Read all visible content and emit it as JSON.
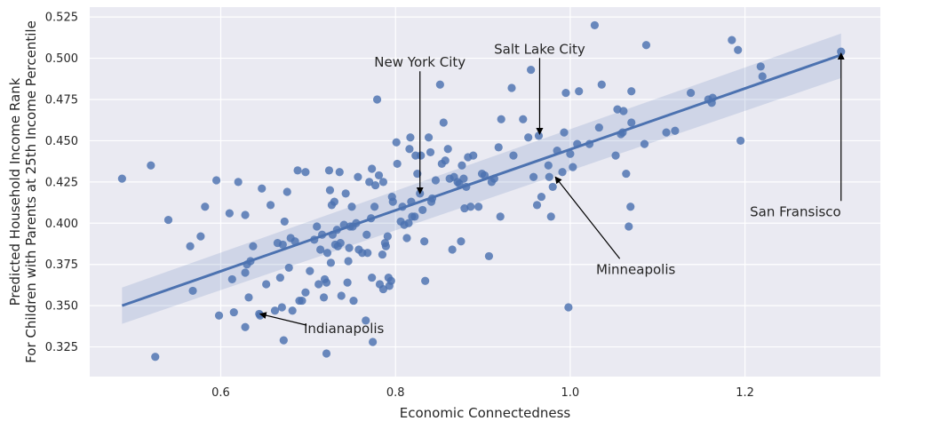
{
  "chart_data": {
    "type": "scatter",
    "xlabel": "Economic Connectedness",
    "ylabel_lines": [
      "Predicted Household Income Rank",
      "For Children with Parents at 25th Income Percentile"
    ],
    "xlim": [
      0.45,
      1.355
    ],
    "ylim": [
      0.307,
      0.531
    ],
    "xticks": [
      0.6,
      0.8,
      1.0,
      1.2
    ],
    "xtick_labels": [
      "0.6",
      "0.8",
      "1.0",
      "1.2"
    ],
    "yticks": [
      0.325,
      0.35,
      0.375,
      0.4,
      0.425,
      0.45,
      0.475,
      0.5,
      0.525
    ],
    "ytick_labels": [
      "0.325",
      "0.350",
      "0.375",
      "0.400",
      "0.425",
      "0.450",
      "0.475",
      "0.500",
      "0.525"
    ],
    "grid": true,
    "regression": {
      "x": [
        0.487,
        1.31
      ],
      "y": [
        0.35,
        0.502
      ],
      "ci_low": [
        0.339,
        0.488
      ],
      "ci_high": [
        0.361,
        0.515
      ]
    },
    "annotations": [
      {
        "text": "New York City",
        "x": 0.828,
        "y": 0.418,
        "text_x": 0.828,
        "text_y": 0.4975,
        "anchor": "middle"
      },
      {
        "text": "Salt Lake City",
        "x": 0.965,
        "y": 0.454,
        "text_x": 0.965,
        "text_y": 0.5055,
        "anchor": "middle"
      },
      {
        "text": "San Fransisco",
        "x": 1.31,
        "y": 0.503,
        "text_x": 1.31,
        "text_y": 0.407,
        "anchor": "end"
      },
      {
        "text": "Minneapolis",
        "x": 0.983,
        "y": 0.428,
        "text_x": 1.075,
        "text_y": 0.372,
        "anchor": "middle"
      },
      {
        "text": "Indianapolis",
        "x": 0.645,
        "y": 0.345,
        "text_x": 0.741,
        "text_y": 0.336,
        "anchor": "middle"
      }
    ],
    "points": [
      [
        0.487,
        0.427
      ],
      [
        0.52,
        0.435
      ],
      [
        0.525,
        0.319
      ],
      [
        0.54,
        0.402
      ],
      [
        0.565,
        0.386
      ],
      [
        0.568,
        0.359
      ],
      [
        0.577,
        0.392
      ],
      [
        0.582,
        0.41
      ],
      [
        0.595,
        0.426
      ],
      [
        0.598,
        0.344
      ],
      [
        0.61,
        0.406
      ],
      [
        0.613,
        0.366
      ],
      [
        0.615,
        0.346
      ],
      [
        0.62,
        0.425
      ],
      [
        0.628,
        0.37
      ],
      [
        0.628,
        0.405
      ],
      [
        0.628,
        0.337
      ],
      [
        0.63,
        0.375
      ],
      [
        0.632,
        0.355
      ],
      [
        0.634,
        0.377
      ],
      [
        0.637,
        0.386
      ],
      [
        0.644,
        0.345
      ],
      [
        0.645,
        0.344
      ],
      [
        0.647,
        0.421
      ],
      [
        0.652,
        0.363
      ],
      [
        0.657,
        0.411
      ],
      [
        0.662,
        0.347
      ],
      [
        0.665,
        0.388
      ],
      [
        0.668,
        0.367
      ],
      [
        0.67,
        0.349
      ],
      [
        0.671,
        0.387
      ],
      [
        0.672,
        0.329
      ],
      [
        0.673,
        0.401
      ],
      [
        0.676,
        0.419
      ],
      [
        0.678,
        0.373
      ],
      [
        0.68,
        0.391
      ],
      [
        0.682,
        0.347
      ],
      [
        0.685,
        0.389
      ],
      [
        0.688,
        0.432
      ],
      [
        0.69,
        0.353
      ],
      [
        0.693,
        0.353
      ],
      [
        0.697,
        0.431
      ],
      [
        0.697,
        0.358
      ],
      [
        0.702,
        0.371
      ],
      [
        0.707,
        0.39
      ],
      [
        0.71,
        0.398
      ],
      [
        0.712,
        0.363
      ],
      [
        0.714,
        0.384
      ],
      [
        0.716,
        0.393
      ],
      [
        0.718,
        0.355
      ],
      [
        0.719,
        0.366
      ],
      [
        0.721,
        0.364
      ],
      [
        0.721,
        0.321
      ],
      [
        0.722,
        0.382
      ],
      [
        0.724,
        0.432
      ],
      [
        0.725,
        0.42
      ],
      [
        0.726,
        0.376
      ],
      [
        0.727,
        0.411
      ],
      [
        0.728,
        0.393
      ],
      [
        0.73,
        0.413
      ],
      [
        0.731,
        0.387
      ],
      [
        0.733,
        0.396
      ],
      [
        0.734,
        0.386
      ],
      [
        0.736,
        0.431
      ],
      [
        0.737,
        0.388
      ],
      [
        0.738,
        0.356
      ],
      [
        0.741,
        0.399
      ],
      [
        0.743,
        0.418
      ],
      [
        0.745,
        0.364
      ],
      [
        0.746,
        0.377
      ],
      [
        0.747,
        0.385
      ],
      [
        0.748,
        0.398
      ],
      [
        0.75,
        0.41
      ],
      [
        0.751,
        0.398
      ],
      [
        0.752,
        0.353
      ],
      [
        0.755,
        0.4
      ],
      [
        0.757,
        0.428
      ],
      [
        0.758,
        0.384
      ],
      [
        0.762,
        0.382
      ],
      [
        0.766,
        0.341
      ],
      [
        0.767,
        0.393
      ],
      [
        0.768,
        0.382
      ],
      [
        0.77,
        0.425
      ],
      [
        0.772,
        0.403
      ],
      [
        0.773,
        0.433
      ],
      [
        0.773,
        0.367
      ],
      [
        0.774,
        0.328
      ],
      [
        0.776,
        0.41
      ],
      [
        0.777,
        0.423
      ],
      [
        0.779,
        0.475
      ],
      [
        0.781,
        0.429
      ],
      [
        0.782,
        0.363
      ],
      [
        0.785,
        0.381
      ],
      [
        0.786,
        0.36
      ],
      [
        0.786,
        0.425
      ],
      [
        0.788,
        0.388
      ],
      [
        0.789,
        0.386
      ],
      [
        0.791,
        0.392
      ],
      [
        0.792,
        0.367
      ],
      [
        0.793,
        0.362
      ],
      [
        0.795,
        0.365
      ],
      [
        0.796,
        0.416
      ],
      [
        0.797,
        0.413
      ],
      [
        0.801,
        0.449
      ],
      [
        0.802,
        0.436
      ],
      [
        0.806,
        0.401
      ],
      [
        0.808,
        0.41
      ],
      [
        0.81,
        0.399
      ],
      [
        0.813,
        0.391
      ],
      [
        0.815,
        0.4
      ],
      [
        0.816,
        0.445
      ],
      [
        0.817,
        0.452
      ],
      [
        0.818,
        0.413
      ],
      [
        0.819,
        0.404
      ],
      [
        0.822,
        0.404
      ],
      [
        0.823,
        0.441
      ],
      [
        0.825,
        0.43
      ],
      [
        0.828,
        0.418
      ],
      [
        0.829,
        0.441
      ],
      [
        0.831,
        0.408
      ],
      [
        0.833,
        0.389
      ],
      [
        0.834,
        0.365
      ],
      [
        0.838,
        0.452
      ],
      [
        0.84,
        0.443
      ],
      [
        0.841,
        0.413
      ],
      [
        0.842,
        0.415
      ],
      [
        0.846,
        0.426
      ],
      [
        0.851,
        0.484
      ],
      [
        0.853,
        0.436
      ],
      [
        0.855,
        0.461
      ],
      [
        0.857,
        0.438
      ],
      [
        0.86,
        0.445
      ],
      [
        0.862,
        0.427
      ],
      [
        0.865,
        0.384
      ],
      [
        0.867,
        0.428
      ],
      [
        0.871,
        0.425
      ],
      [
        0.873,
        0.424
      ],
      [
        0.875,
        0.389
      ],
      [
        0.876,
        0.435
      ],
      [
        0.878,
        0.427
      ],
      [
        0.879,
        0.409
      ],
      [
        0.881,
        0.422
      ],
      [
        0.883,
        0.44
      ],
      [
        0.886,
        0.41
      ],
      [
        0.889,
        0.441
      ],
      [
        0.895,
        0.41
      ],
      [
        0.899,
        0.43
      ],
      [
        0.902,
        0.429
      ],
      [
        0.907,
        0.38
      ],
      [
        0.91,
        0.425
      ],
      [
        0.913,
        0.427
      ],
      [
        0.918,
        0.446
      ],
      [
        0.92,
        0.404
      ],
      [
        0.921,
        0.463
      ],
      [
        0.933,
        0.482
      ],
      [
        0.935,
        0.441
      ],
      [
        0.946,
        0.463
      ],
      [
        0.952,
        0.452
      ],
      [
        0.955,
        0.493
      ],
      [
        0.958,
        0.428
      ],
      [
        0.962,
        0.411
      ],
      [
        0.964,
        0.453
      ],
      [
        0.967,
        0.416
      ],
      [
        0.975,
        0.435
      ],
      [
        0.976,
        0.428
      ],
      [
        0.978,
        0.404
      ],
      [
        0.98,
        0.422
      ],
      [
        0.985,
        0.444
      ],
      [
        0.991,
        0.431
      ],
      [
        0.993,
        0.455
      ],
      [
        0.995,
        0.479
      ],
      [
        0.998,
        0.349
      ],
      [
        1.0,
        0.442
      ],
      [
        1.003,
        0.434
      ],
      [
        1.008,
        0.448
      ],
      [
        1.01,
        0.48
      ],
      [
        1.022,
        0.448
      ],
      [
        1.028,
        0.52
      ],
      [
        1.033,
        0.458
      ],
      [
        1.036,
        0.484
      ],
      [
        1.052,
        0.441
      ],
      [
        1.054,
        0.469
      ],
      [
        1.058,
        0.454
      ],
      [
        1.06,
        0.455
      ],
      [
        1.061,
        0.468
      ],
      [
        1.064,
        0.43
      ],
      [
        1.067,
        0.398
      ],
      [
        1.069,
        0.41
      ],
      [
        1.07,
        0.461
      ],
      [
        1.07,
        0.48
      ],
      [
        1.085,
        0.448
      ],
      [
        1.087,
        0.508
      ],
      [
        1.11,
        0.455
      ],
      [
        1.12,
        0.456
      ],
      [
        1.138,
        0.479
      ],
      [
        1.158,
        0.475
      ],
      [
        1.162,
        0.473
      ],
      [
        1.163,
        0.476
      ],
      [
        1.185,
        0.511
      ],
      [
        1.192,
        0.505
      ],
      [
        1.195,
        0.45
      ],
      [
        1.218,
        0.495
      ],
      [
        1.22,
        0.489
      ],
      [
        1.31,
        0.504
      ]
    ]
  }
}
